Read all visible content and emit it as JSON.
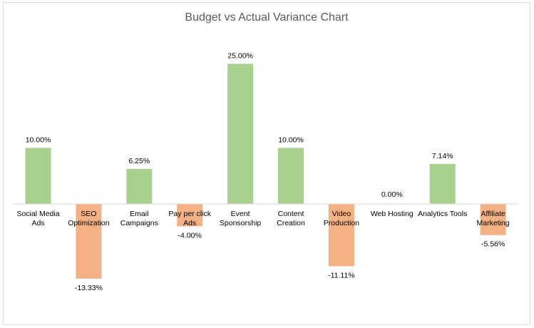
{
  "chart_data": {
    "type": "bar",
    "title": "Budget vs Actual Variance Chart",
    "xlabel": "",
    "ylabel": "",
    "categories": [
      [
        "Social Media",
        "Ads"
      ],
      [
        "SEO",
        "Optimization"
      ],
      [
        "Email",
        "Campaigns"
      ],
      [
        "Pay per click",
        "Ads"
      ],
      [
        "Event",
        "Sponsorship"
      ],
      [
        "Content",
        "Creation"
      ],
      [
        "Video",
        "Production"
      ],
      [
        "Web Hosting"
      ],
      [
        "Analytics Tools"
      ],
      [
        "Affiliate",
        "Marketing"
      ]
    ],
    "values": [
      10.0,
      -13.33,
      6.25,
      -4.0,
      25.0,
      10.0,
      -11.11,
      0.0,
      7.14,
      -5.56
    ],
    "data_labels": [
      "10.00%",
      "-13.33%",
      "6.25%",
      "-4.00%",
      "25.00%",
      "10.00%",
      "-11.11%",
      "0.00%",
      "7.14%",
      "-5.56%"
    ],
    "ylim": [
      -15,
      25
    ],
    "grid": false,
    "legend": "none",
    "colors": {
      "positive": "#a9d18e",
      "negative": "#f4b183",
      "axis": "#d9d9d9"
    }
  }
}
